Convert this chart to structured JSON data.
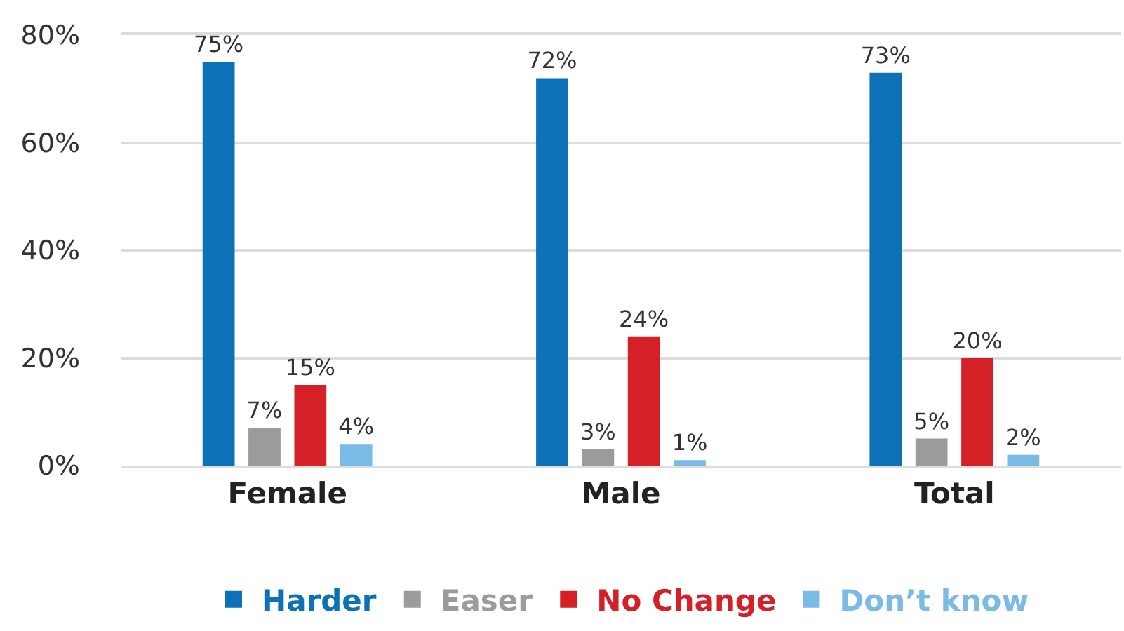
{
  "chart_data": {
    "type": "bar",
    "categories": [
      "Female",
      "Male",
      "Total"
    ],
    "series": [
      {
        "name": "Harder",
        "color": "#0d72b5",
        "values": [
          75,
          72,
          73
        ],
        "value_labels": [
          "75%",
          "72%",
          "73%"
        ]
      },
      {
        "name": "Easer",
        "color": "#9b9b9b",
        "values": [
          7,
          3,
          5
        ],
        "value_labels": [
          "7%",
          "3%",
          "5%"
        ]
      },
      {
        "name": "No Change",
        "color": "#d52027",
        "values": [
          15,
          24,
          20
        ],
        "value_labels": [
          "15%",
          "24%",
          "20%"
        ]
      },
      {
        "name": "Don’t know",
        "color": "#7abbe6",
        "values": [
          4,
          1,
          2
        ],
        "value_labels": [
          "4%",
          "1%",
          "2%"
        ]
      }
    ],
    "ylim": [
      0,
      80
    ],
    "yticks": [
      {
        "value": 0,
        "label": "0%"
      },
      {
        "value": 20,
        "label": "20%"
      },
      {
        "value": 40,
        "label": "40%"
      },
      {
        "value": 60,
        "label": "60%"
      },
      {
        "value": 80,
        "label": "80%"
      }
    ],
    "grid": "y",
    "legend": "bottom"
  }
}
